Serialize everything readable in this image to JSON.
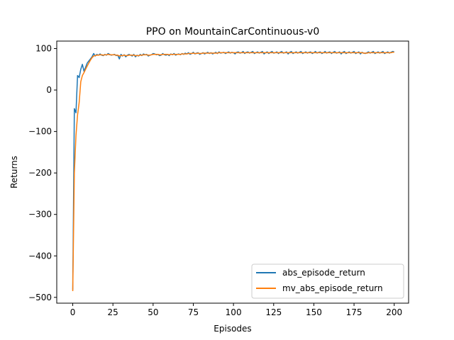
{
  "chart_data": {
    "type": "line",
    "title": "PPO on MountainCarContinuous-v0",
    "xlabel": "Episodes",
    "ylabel": "Returns",
    "xlim": [
      -9.95,
      208.95
    ],
    "ylim": [
      -514,
      118
    ],
    "xticks": [
      0,
      25,
      50,
      75,
      100,
      125,
      150,
      175,
      200
    ],
    "xtick_labels": [
      "0",
      "25",
      "50",
      "75",
      "100",
      "125",
      "150",
      "175",
      "200"
    ],
    "yticks": [
      -500,
      -400,
      -300,
      -200,
      -100,
      0,
      100
    ],
    "ytick_labels": [
      "−500",
      "−400",
      "−300",
      "−200",
      "−100",
      "0",
      "100"
    ],
    "grid": false,
    "legend_position": "lower-right",
    "series": [
      {
        "name": "abs_episode_return",
        "color": "#1f77b4",
        "x": [
          0,
          1,
          2,
          3,
          4,
          5,
          6,
          7,
          8,
          9,
          10,
          11,
          12,
          13,
          14,
          15,
          16,
          17,
          18,
          19,
          20,
          21,
          22,
          23,
          24,
          25,
          26,
          27,
          28,
          29,
          30,
          31,
          32,
          33,
          34,
          35,
          36,
          37,
          38,
          39,
          40,
          41,
          42,
          43,
          44,
          45,
          46,
          47,
          48,
          49,
          50,
          51,
          52,
          53,
          54,
          55,
          56,
          57,
          58,
          59,
          60,
          61,
          62,
          63,
          64,
          65,
          66,
          67,
          68,
          69,
          70,
          71,
          72,
          73,
          74,
          75,
          76,
          77,
          78,
          79,
          80,
          81,
          82,
          83,
          84,
          85,
          86,
          87,
          88,
          89,
          90,
          91,
          92,
          93,
          94,
          95,
          96,
          97,
          98,
          99,
          100,
          101,
          102,
          103,
          104,
          105,
          106,
          107,
          108,
          109,
          110,
          111,
          112,
          113,
          114,
          115,
          116,
          117,
          118,
          119,
          120,
          121,
          122,
          123,
          124,
          125,
          126,
          127,
          128,
          129,
          130,
          131,
          132,
          133,
          134,
          135,
          136,
          137,
          138,
          139,
          140,
          141,
          142,
          143,
          144,
          145,
          146,
          147,
          148,
          149,
          150,
          151,
          152,
          153,
          154,
          155,
          156,
          157,
          158,
          159,
          160,
          161,
          162,
          163,
          164,
          165,
          166,
          167,
          168,
          169,
          170,
          171,
          172,
          173,
          174,
          175,
          176,
          177,
          178,
          179,
          180,
          181,
          182,
          183,
          184,
          185,
          186,
          187,
          188,
          189,
          190,
          191,
          192,
          193,
          194,
          195,
          196,
          197,
          198,
          199,
          200
        ],
        "values": [
          -482,
          -45,
          -55,
          35,
          30,
          50,
          62,
          45,
          55,
          65,
          70,
          75,
          80,
          88,
          82,
          86,
          84,
          87,
          84,
          83,
          86,
          84,
          88,
          86,
          84,
          85,
          86,
          83,
          84,
          75,
          86,
          82,
          85,
          80,
          84,
          86,
          84,
          82,
          86,
          80,
          84,
          82,
          86,
          83,
          87,
          85,
          86,
          82,
          84,
          85,
          88,
          87,
          85,
          86,
          83,
          84,
          88,
          85,
          84,
          86,
          83,
          87,
          85,
          88,
          84,
          86,
          87,
          85,
          88,
          86,
          89,
          87,
          90,
          86,
          88,
          91,
          87,
          89,
          90,
          86,
          88,
          90,
          87,
          89,
          91,
          88,
          90,
          87,
          89,
          91,
          88,
          92,
          89,
          90,
          91,
          88,
          90,
          92,
          89,
          91,
          90,
          87,
          91,
          92,
          89,
          90,
          93,
          88,
          91,
          92,
          89,
          91,
          93,
          88,
          90,
          92,
          89,
          91,
          93,
          87,
          90,
          92,
          88,
          91,
          93,
          89,
          90,
          92,
          88,
          91,
          93,
          89,
          90,
          92,
          87,
          91,
          93,
          88,
          90,
          92,
          89,
          91,
          93,
          88,
          90,
          92,
          89,
          91,
          92,
          88,
          90,
          93,
          89,
          91,
          92,
          88,
          90,
          93,
          89,
          91,
          92,
          88,
          91,
          93,
          89,
          90,
          92,
          87,
          91,
          93,
          88,
          90,
          92,
          89,
          91,
          93,
          88,
          90,
          92,
          87,
          91,
          89,
          88,
          90,
          92,
          89,
          91,
          93,
          88,
          90,
          92,
          89,
          91,
          93,
          88,
          90,
          92,
          89,
          91,
          93,
          92
        ]
      },
      {
        "name": "mv_abs_episode_return",
        "color": "#ff7f0e",
        "x": [
          0,
          1,
          2,
          3,
          4,
          5,
          6,
          7,
          8,
          9,
          10,
          11,
          12,
          13,
          14,
          15,
          16,
          17,
          18,
          19,
          20,
          21,
          22,
          23,
          24,
          25,
          26,
          27,
          28,
          29,
          30,
          31,
          32,
          33,
          34,
          35,
          36,
          37,
          38,
          39,
          40,
          41,
          42,
          43,
          44,
          45,
          46,
          47,
          48,
          49,
          50,
          51,
          52,
          53,
          54,
          55,
          56,
          57,
          58,
          59,
          60,
          61,
          62,
          63,
          64,
          65,
          66,
          67,
          68,
          69,
          70,
          71,
          72,
          73,
          74,
          75,
          76,
          77,
          78,
          79,
          80,
          81,
          82,
          83,
          84,
          85,
          86,
          87,
          88,
          89,
          90,
          91,
          92,
          93,
          94,
          95,
          96,
          97,
          98,
          99,
          100,
          101,
          102,
          103,
          104,
          105,
          106,
          107,
          108,
          109,
          110,
          111,
          112,
          113,
          114,
          115,
          116,
          117,
          118,
          119,
          120,
          121,
          122,
          123,
          124,
          125,
          126,
          127,
          128,
          129,
          130,
          131,
          132,
          133,
          134,
          135,
          136,
          137,
          138,
          139,
          140,
          141,
          142,
          143,
          144,
          145,
          146,
          147,
          148,
          149,
          150,
          151,
          152,
          153,
          154,
          155,
          156,
          157,
          158,
          159,
          160,
          161,
          162,
          163,
          164,
          165,
          166,
          167,
          168,
          169,
          170,
          171,
          172,
          173,
          174,
          175,
          176,
          177,
          178,
          179,
          180,
          181,
          182,
          183,
          184,
          185,
          186,
          187,
          188,
          189,
          190,
          191,
          192,
          193,
          194,
          195,
          196,
          197,
          198,
          199,
          200
        ],
        "values": [
          -485,
          -200,
          -110,
          -60,
          -30,
          20,
          35,
          42,
          50,
          58,
          65,
          72,
          78,
          82,
          83,
          84,
          84,
          85,
          85,
          84,
          85,
          85,
          86,
          85,
          85,
          85,
          85,
          84,
          84,
          82,
          83,
          83,
          84,
          83,
          83,
          84,
          84,
          84,
          84,
          83,
          83,
          83,
          84,
          84,
          85,
          85,
          85,
          84,
          84,
          85,
          86,
          86,
          86,
          86,
          85,
          85,
          86,
          86,
          86,
          86,
          85,
          86,
          86,
          86,
          86,
          86,
          86,
          86,
          87,
          87,
          87,
          87,
          88,
          88,
          88,
          89,
          88,
          88,
          89,
          88,
          88,
          89,
          89,
          89,
          89,
          89,
          89,
          89,
          89,
          89,
          89,
          90,
          90,
          90,
          90,
          90,
          90,
          90,
          90,
          90,
          90,
          90,
          90,
          90,
          90,
          90,
          90,
          90,
          90,
          90,
          90,
          90,
          90,
          90,
          90,
          90,
          90,
          90,
          90,
          90,
          90,
          90,
          90,
          90,
          90,
          90,
          90,
          90,
          90,
          90,
          90,
          90,
          90,
          90,
          90,
          90,
          90,
          90,
          90,
          90,
          90,
          90,
          90,
          90,
          90,
          90,
          90,
          90,
          90,
          90,
          90,
          90,
          90,
          90,
          90,
          90,
          90,
          90,
          90,
          90,
          90,
          90,
          90,
          90,
          90,
          90,
          90,
          90,
          90,
          90,
          90,
          90,
          90,
          90,
          90,
          90,
          90,
          90,
          90,
          90,
          90,
          89,
          89,
          89,
          90,
          90,
          90,
          90,
          90,
          90,
          90,
          90,
          90,
          90,
          90,
          90,
          90,
          90,
          90,
          91,
          91
        ]
      }
    ]
  }
}
